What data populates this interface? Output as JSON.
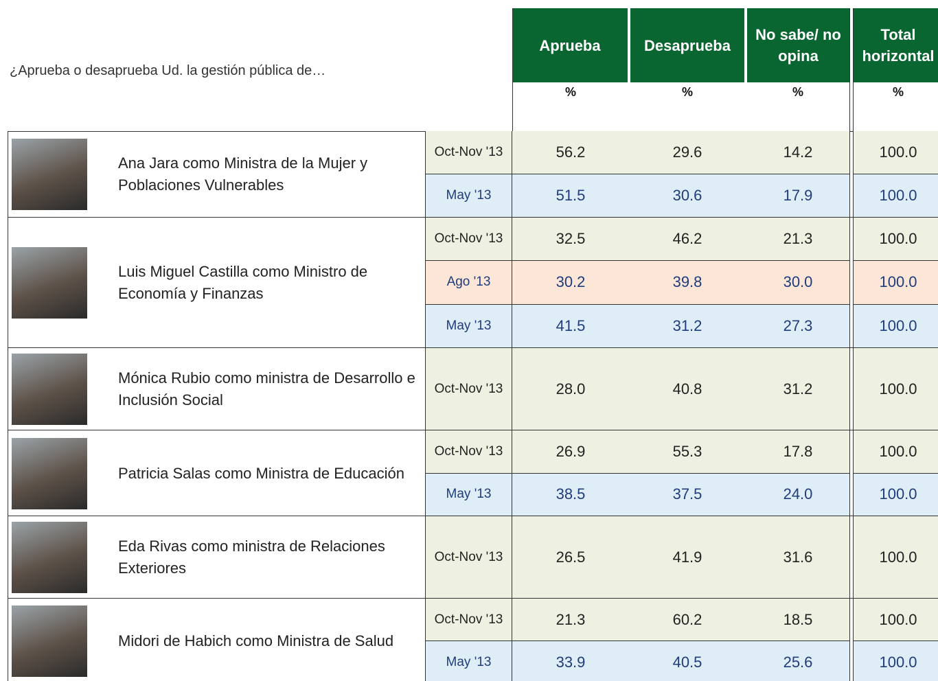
{
  "question": "¿Aprueba o desaprueba Ud. la gestión pública de…",
  "columns": [
    {
      "label": "Aprueba",
      "unit": "%"
    },
    {
      "label": "Desaprueba",
      "unit": "%"
    },
    {
      "label": "No sabe/ no opina",
      "unit": "%"
    },
    {
      "label": "Total horizontal",
      "unit": "%"
    }
  ],
  "groups": [
    {
      "name": "Ana Jara como Ministra de la Mujer y Poblaciones Vulnerables",
      "rows": [
        {
          "period": "Oct-Nov '13",
          "values": [
            "56.2",
            "29.6",
            "14.2",
            "100.0"
          ]
        },
        {
          "period": "May '13",
          "values": [
            "51.5",
            "30.6",
            "17.9",
            "100.0"
          ]
        }
      ]
    },
    {
      "name": "Luis Miguel Castilla como Ministro de Economía y Finanzas",
      "rows": [
        {
          "period": "Oct-Nov '13",
          "values": [
            "32.5",
            "46.2",
            "21.3",
            "100.0"
          ]
        },
        {
          "period": "Ago '13",
          "values": [
            "30.2",
            "39.8",
            "30.0",
            "100.0"
          ]
        },
        {
          "period": "May '13",
          "values": [
            "41.5",
            "31.2",
            "27.3",
            "100.0"
          ]
        }
      ]
    },
    {
      "name": "Mónica Rubio como ministra de Desarrollo e Inclusión Social",
      "rows": [
        {
          "period": "Oct-Nov '13",
          "values": [
            "28.0",
            "40.8",
            "31.2",
            "100.0"
          ]
        }
      ]
    },
    {
      "name": "Patricia Salas como Ministra de Educación",
      "rows": [
        {
          "period": "Oct-Nov '13",
          "values": [
            "26.9",
            "55.3",
            "17.8",
            "100.0"
          ]
        },
        {
          "period": "May '13",
          "values": [
            "38.5",
            "37.5",
            "24.0",
            "100.0"
          ]
        }
      ]
    },
    {
      "name": "Eda Rivas como ministra de Relaciones Exteriores",
      "rows": [
        {
          "period": "Oct-Nov '13",
          "values": [
            "26.5",
            "41.9",
            "31.6",
            "100.0"
          ]
        }
      ]
    },
    {
      "name": "Midori de Habich como Ministra de Salud",
      "rows": [
        {
          "period": "Oct-Nov '13",
          "values": [
            "21.3",
            "60.2",
            "18.5",
            "100.0"
          ]
        },
        {
          "period": "May '13",
          "values": [
            "33.9",
            "40.5",
            "25.6",
            "100.0"
          ]
        }
      ]
    }
  ]
}
